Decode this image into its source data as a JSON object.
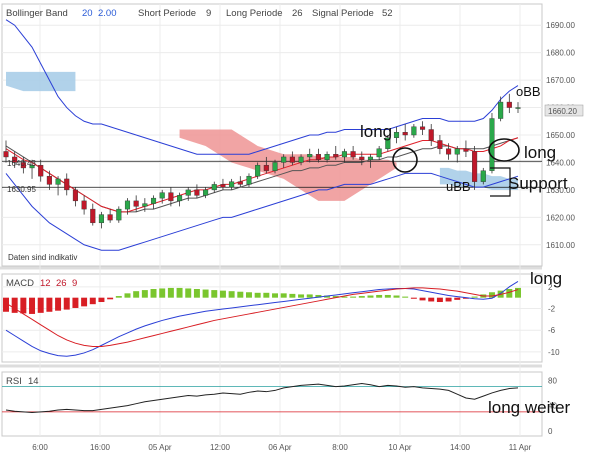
{
  "header": {
    "bb_label": "Bollinger Band",
    "bb_p1": "20",
    "bb_p2": "2.00",
    "short_label": "Short Periode",
    "short_val": "9",
    "long_label": "Long Periode",
    "long_val": "26",
    "signal_label": "Signal Periode",
    "signal_val": "52"
  },
  "disclaimer": "Daten sind indikativ",
  "price_tags": {
    "current": "1660.20",
    "level1": "1640.43",
    "level2": "1630.95"
  },
  "annotations": {
    "obb": "oBB",
    "long1": "long",
    "long2": "long",
    "ubb": "uBB",
    "support": "Support",
    "long3": "long",
    "long_weiter": "long weiter"
  },
  "macd_header": {
    "label": "MACD",
    "p1": "12",
    "p2": "26",
    "p3": "9"
  },
  "rsi_header": {
    "label": "RSI",
    "p1": "14"
  },
  "colors": {
    "bollinger": "#2b3fd6",
    "kumo_bear": "#f09a9a",
    "kumo_bull": "#a9cde8",
    "sma": "#e0202a",
    "tenkan": "#a020a0",
    "kijun": "#555555",
    "bull_candle": "#2aa84a",
    "bear_candle": "#c0182a",
    "macd_pos": "#7ac62e",
    "macd_neg": "#d81e24",
    "macd_line": "#2b3fd6",
    "signal_line": "#d81e24",
    "rsi_line": "#222222"
  },
  "chart_data": [
    {
      "type": "line",
      "subtype": "candlestick",
      "x_ticks": [
        "6:00",
        "16:00",
        "05 Apr",
        "12:00",
        "06 Apr",
        "8:00",
        "10 Apr",
        "14:00",
        "11 Apr"
      ],
      "y_ticks": [
        1610.0,
        1620.0,
        1630.0,
        1640.0,
        1650.0,
        1660.0,
        1670.0,
        1680.0,
        1690.0
      ],
      "ylim": [
        1603,
        1697
      ],
      "horizontal_levels": [
        1640.43,
        1630.95
      ],
      "current_price": 1660.2,
      "candles": [
        [
          1644,
          1648,
          1640,
          1642
        ],
        [
          1642,
          1644,
          1638,
          1640
        ],
        [
          1640,
          1642,
          1636,
          1638
        ],
        [
          1638,
          1641,
          1634,
          1639
        ],
        [
          1639,
          1641,
          1633,
          1635
        ],
        [
          1635,
          1637,
          1630,
          1632
        ],
        [
          1632,
          1635,
          1628,
          1634
        ],
        [
          1634,
          1636,
          1628,
          1630
        ],
        [
          1630,
          1631,
          1624,
          1626
        ],
        [
          1626,
          1628,
          1621,
          1623
        ],
        [
          1623,
          1625,
          1617,
          1618
        ],
        [
          1618,
          1622,
          1616,
          1621
        ],
        [
          1621,
          1623,
          1618,
          1619
        ],
        [
          1619,
          1624,
          1618,
          1623
        ],
        [
          1623,
          1627,
          1621,
          1626
        ],
        [
          1626,
          1628,
          1622,
          1624
        ],
        [
          1624,
          1627,
          1622,
          1625
        ],
        [
          1625,
          1628,
          1623,
          1627
        ],
        [
          1627,
          1630,
          1625,
          1629
        ],
        [
          1629,
          1631,
          1624,
          1626
        ],
        [
          1626,
          1629,
          1624,
          1628
        ],
        [
          1628,
          1631,
          1626,
          1630
        ],
        [
          1630,
          1632,
          1627,
          1628
        ],
        [
          1628,
          1631,
          1627,
          1630
        ],
        [
          1630,
          1633,
          1629,
          1632
        ],
        [
          1632,
          1634,
          1630,
          1631
        ],
        [
          1631,
          1634,
          1630,
          1633
        ],
        [
          1633,
          1635,
          1631,
          1632
        ],
        [
          1632,
          1636,
          1631,
          1635
        ],
        [
          1635,
          1640,
          1634,
          1639
        ],
        [
          1639,
          1642,
          1636,
          1637
        ],
        [
          1637,
          1641,
          1636,
          1640
        ],
        [
          1640,
          1643,
          1638,
          1642
        ],
        [
          1642,
          1644,
          1639,
          1640
        ],
        [
          1640,
          1643,
          1639,
          1642
        ],
        [
          1642,
          1645,
          1640,
          1643
        ],
        [
          1643,
          1645,
          1640,
          1641
        ],
        [
          1641,
          1644,
          1640,
          1643
        ],
        [
          1643,
          1646,
          1641,
          1642
        ],
        [
          1642,
          1645,
          1640,
          1644
        ],
        [
          1644,
          1646,
          1641,
          1642
        ],
        [
          1642,
          1644,
          1639,
          1641
        ],
        [
          1641,
          1643,
          1638,
          1642
        ],
        [
          1642,
          1646,
          1641,
          1645
        ],
        [
          1645,
          1650,
          1644,
          1649
        ],
        [
          1649,
          1653,
          1647,
          1651
        ],
        [
          1651,
          1654,
          1648,
          1650
        ],
        [
          1650,
          1654,
          1649,
          1653
        ],
        [
          1653,
          1655,
          1650,
          1652
        ],
        [
          1652,
          1654,
          1646,
          1648
        ],
        [
          1648,
          1650,
          1643,
          1645
        ],
        [
          1645,
          1647,
          1641,
          1643
        ],
        [
          1643,
          1646,
          1640,
          1645
        ],
        [
          1645,
          1648,
          1642,
          1644
        ],
        [
          1644,
          1646,
          1630,
          1633
        ],
        [
          1633,
          1638,
          1632,
          1637
        ],
        [
          1637,
          1658,
          1636,
          1656
        ],
        [
          1656,
          1664,
          1655,
          1662
        ],
        [
          1662,
          1665,
          1658,
          1660
        ],
        [
          1660,
          1662,
          1658,
          1660
        ]
      ],
      "bollinger_upper": [
        1692,
        1690,
        1686,
        1682,
        1676,
        1670,
        1664,
        1660,
        1657,
        1655,
        1654,
        1654,
        1653,
        1652,
        1651,
        1650,
        1649,
        1648,
        1647,
        1646,
        1645,
        1644,
        1643,
        1643,
        1643,
        1643,
        1643,
        1643,
        1643,
        1644,
        1645,
        1646,
        1647,
        1648,
        1649,
        1650,
        1650,
        1651,
        1651,
        1652,
        1652,
        1652,
        1652,
        1652,
        1652,
        1653,
        1654,
        1655,
        1656,
        1656,
        1656,
        1655,
        1655,
        1655,
        1655,
        1656,
        1659,
        1663,
        1666,
        1668
      ],
      "bollinger_middle": [
        1646,
        1644,
        1642,
        1640,
        1638,
        1636,
        1634,
        1632,
        1630,
        1628,
        1626,
        1624,
        1623,
        1622,
        1622,
        1622,
        1623,
        1623,
        1624,
        1625,
        1626,
        1627,
        1627,
        1628,
        1629,
        1630,
        1630,
        1631,
        1632,
        1633,
        1634,
        1635,
        1636,
        1637,
        1637,
        1638,
        1638,
        1639,
        1639,
        1640,
        1640,
        1640,
        1641,
        1641,
        1642,
        1642,
        1643,
        1644,
        1645,
        1645,
        1646,
        1646,
        1645,
        1645,
        1645,
        1645,
        1646,
        1647,
        1648,
        1649
      ],
      "bollinger_lower": [
        1636,
        1632,
        1628,
        1624,
        1621,
        1618,
        1616,
        1614,
        1612,
        1610,
        1609,
        1608,
        1608,
        1608,
        1609,
        1610,
        1611,
        1612,
        1613,
        1614,
        1615,
        1616,
        1617,
        1618,
        1619,
        1620,
        1620,
        1621,
        1622,
        1623,
        1624,
        1625,
        1626,
        1627,
        1628,
        1629,
        1630,
        1630,
        1631,
        1632,
        1632,
        1632,
        1632,
        1633,
        1634,
        1635,
        1636,
        1636,
        1636,
        1636,
        1635,
        1634,
        1633,
        1632,
        1631,
        1631,
        1632,
        1633,
        1634,
        1635
      ],
      "sma": [
        1645,
        1643,
        1641,
        1640,
        1638,
        1636,
        1634,
        1632,
        1630,
        1628,
        1626,
        1624,
        1623,
        1622,
        1622,
        1623,
        1624,
        1625,
        1626,
        1627,
        1628,
        1629,
        1630,
        1630,
        1631,
        1632,
        1632,
        1633,
        1634,
        1635,
        1636,
        1637,
        1638,
        1639,
        1640,
        1641,
        1641,
        1642,
        1642,
        1643,
        1643,
        1643,
        1643,
        1643,
        1644,
        1645,
        1646,
        1647,
        1648,
        1648,
        1647,
        1646,
        1645,
        1645,
        1644,
        1644,
        1645,
        1646,
        1648,
        1649
      ],
      "kumo_bear": {
        "start": 20,
        "top": [
          1652,
          1652,
          1652,
          1652,
          1652,
          1652,
          1652,
          1650,
          1648,
          1646,
          1645,
          1644,
          1643,
          1643,
          1643,
          1643,
          1642,
          1642,
          1642,
          1642,
          1642,
          1641,
          1641,
          1641,
          1641,
          1640
        ],
        "bottom": [
          1649,
          1648,
          1647,
          1646,
          1644,
          1642,
          1640,
          1639,
          1638,
          1637,
          1636,
          1635,
          1634,
          1632,
          1630,
          1628,
          1626,
          1626,
          1626,
          1626,
          1628,
          1630,
          1632,
          1634,
          1636,
          1638
        ]
      },
      "kumo_bull": {
        "start": 50,
        "top": [
          1638,
          1638,
          1637,
          1637,
          1636,
          1636,
          1635,
          1635,
          1634,
          1634
        ],
        "bottom": [
          1632,
          1632,
          1631,
          1631,
          1631,
          1631,
          1630,
          1630,
          1630,
          1630
        ]
      },
      "kumo_bull_top_left": {
        "end": 9,
        "top": [
          1673,
          1673,
          1673,
          1673,
          1673,
          1673,
          1673,
          1673,
          1673
        ],
        "bottom": [
          1668,
          1667,
          1666,
          1666,
          1666,
          1666,
          1666,
          1666,
          1666
        ]
      }
    },
    {
      "type": "bar",
      "title": "MACD",
      "y_ticks": [
        2,
        -2,
        -6,
        -10
      ],
      "ylim": [
        -11.5,
        4
      ],
      "histogram": [
        -2.6,
        -2.8,
        -2.9,
        -3.0,
        -2.8,
        -2.6,
        -2.4,
        -2.2,
        -1.9,
        -1.6,
        -1.2,
        -0.8,
        -0.3,
        0.3,
        0.8,
        1.2,
        1.4,
        1.6,
        1.7,
        1.8,
        1.8,
        1.7,
        1.6,
        1.5,
        1.4,
        1.3,
        1.2,
        1.1,
        1.0,
        0.9,
        0.9,
        0.8,
        0.8,
        0.7,
        0.6,
        0.6,
        0.5,
        0.4,
        0.3,
        0.2,
        0.2,
        0.3,
        0.4,
        0.5,
        0.5,
        0.4,
        0.2,
        -0.2,
        -0.5,
        -0.7,
        -0.8,
        -0.7,
        -0.4,
        -0.2,
        0.2,
        0.6,
        1.0,
        1.3,
        1.6,
        1.8
      ],
      "macd_line": [
        -6.0,
        -7.0,
        -8.0,
        -9.0,
        -9.8,
        -10.3,
        -10.7,
        -10.8,
        -10.6,
        -10.2,
        -9.6,
        -8.8,
        -8.0,
        -7.2,
        -6.5,
        -5.8,
        -5.2,
        -4.7,
        -4.2,
        -3.8,
        -3.4,
        -3.1,
        -2.8,
        -2.5,
        -2.3,
        -2.1,
        -1.9,
        -1.7,
        -1.5,
        -1.3,
        -1.1,
        -0.9,
        -0.7,
        -0.5,
        -0.3,
        -0.1,
        0.1,
        0.3,
        0.5,
        0.7,
        0.9,
        1.1,
        1.3,
        1.5,
        1.6,
        1.7,
        1.7,
        1.6,
        1.3,
        1.0,
        0.7,
        0.4,
        0.2,
        0.0,
        -0.2,
        -0.3,
        -0.1,
        0.8,
        2.0,
        3.0
      ],
      "signal_line": [
        -1.0,
        -2.0,
        -3.0,
        -4.0,
        -5.0,
        -6.0,
        -7.0,
        -7.8,
        -8.4,
        -8.8,
        -9.0,
        -9.0,
        -8.8,
        -8.5,
        -8.2,
        -7.8,
        -7.4,
        -7.0,
        -6.6,
        -6.2,
        -5.8,
        -5.4,
        -5.0,
        -4.6,
        -4.2,
        -3.9,
        -3.6,
        -3.3,
        -3.0,
        -2.7,
        -2.4,
        -2.1,
        -1.8,
        -1.5,
        -1.2,
        -0.9,
        -0.6,
        -0.3,
        0.0,
        0.3,
        0.6,
        0.8,
        1.0,
        1.2,
        1.4,
        1.6,
        1.7,
        1.8,
        1.8,
        1.7,
        1.6,
        1.4,
        1.2,
        0.9,
        0.6,
        0.3,
        0.3,
        0.6,
        1.0,
        1.5
      ]
    },
    {
      "type": "line",
      "title": "RSI",
      "y_ticks": [
        80,
        40,
        0
      ],
      "ylim": [
        -5,
        90
      ],
      "levels": [
        70,
        30
      ],
      "values": [
        33,
        31,
        30,
        29,
        30,
        31,
        33,
        34,
        33,
        32,
        32,
        34,
        36,
        38,
        40,
        43,
        46,
        48,
        50,
        52,
        54,
        56,
        55,
        57,
        58,
        60,
        59,
        58,
        61,
        63,
        62,
        64,
        68,
        70,
        72,
        73,
        74,
        72,
        70,
        71,
        73,
        75,
        73,
        70,
        72,
        71,
        69,
        70,
        68,
        67,
        66,
        64,
        58,
        52,
        50,
        55,
        60,
        64,
        67,
        68
      ]
    }
  ]
}
